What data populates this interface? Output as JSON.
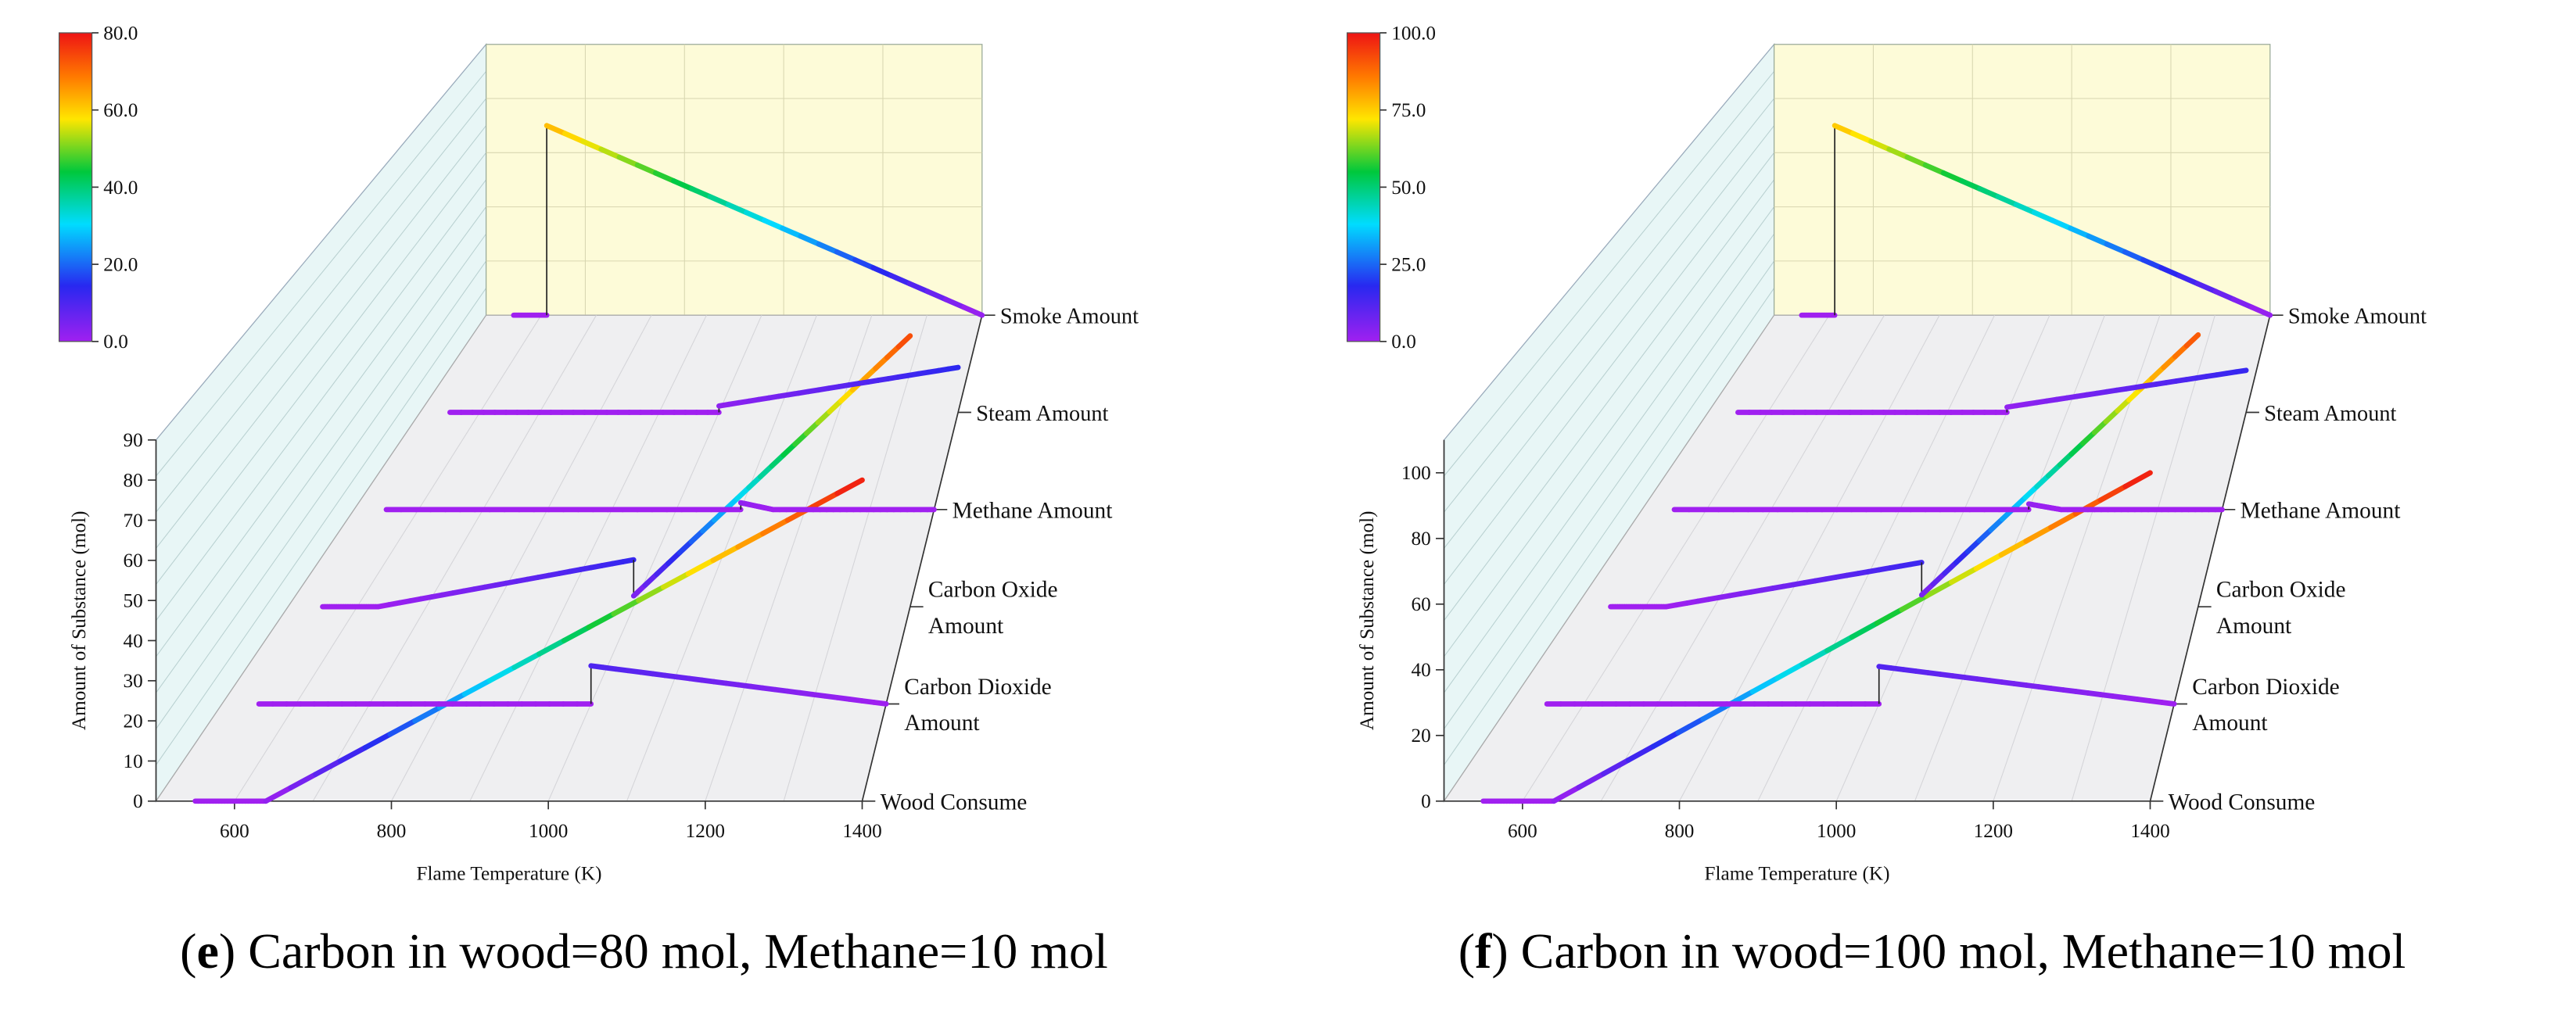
{
  "chart_data": [
    {
      "type": "3d-line",
      "panel_letter": "e",
      "caption": ") Carbon in wood=80 mol, Methane=10 mol",
      "xlabel": "Flame Temperature (K)",
      "ylabel": "Amount of Substance (mol)",
      "xlim": [
        500,
        1400
      ],
      "xticks": [
        "600",
        "800",
        "1000",
        "1200",
        "1400"
      ],
      "zlim": [
        0,
        90
      ],
      "zticks": [
        "0",
        "10",
        "20",
        "30",
        "40",
        "50",
        "60",
        "70",
        "80",
        "90"
      ],
      "colorbar": {
        "min": 0,
        "max": 80,
        "ticks": [
          "0.0",
          "20.0",
          "40.0",
          "60.0",
          "80.0"
        ]
      },
      "series": [
        {
          "name": "Wood Consume",
          "label_lines": [
            "Wood Consume"
          ],
          "points": [
            [
              550,
              0
            ],
            [
              640,
              0
            ],
            [
              1400,
              80
            ]
          ]
        },
        {
          "name": "Carbon Dioxide Amount",
          "label_lines": [
            "Carbon Dioxide",
            "Amount"
          ],
          "points": [
            [
              550,
              0
            ],
            [
              1000,
              0
            ],
            [
              1000,
              10
            ],
            [
              1400,
              0
            ]
          ]
        },
        {
          "name": "Carbon Oxide Amount",
          "label_lines": [
            "Carbon Oxide",
            "Amount"
          ],
          "points": [
            [
              550,
              0
            ],
            [
              630,
              0
            ],
            [
              1000,
              13
            ],
            [
              1000,
              3
            ],
            [
              1400,
              75
            ]
          ]
        },
        {
          "name": "Methane Amount",
          "label_lines": [
            "Methane Amount"
          ],
          "points": [
            [
              550,
              0
            ],
            [
              1100,
              0
            ],
            [
              1100,
              2
            ],
            [
              1150,
              0
            ],
            [
              1400,
              0
            ]
          ]
        },
        {
          "name": "Steam Amount",
          "label_lines": [
            "Steam Amount"
          ],
          "points": [
            [
              550,
              0
            ],
            [
              1000,
              0
            ],
            [
              1000,
              2
            ],
            [
              1400,
              14
            ]
          ]
        },
        {
          "name": "Smoke Amount",
          "label_lines": [
            "Smoke Amount"
          ],
          "points": [
            [
              550,
              0
            ],
            [
              610,
              0
            ],
            [
              610,
              63
            ],
            [
              1400,
              0
            ]
          ]
        }
      ]
    },
    {
      "type": "3d-line",
      "panel_letter": "f",
      "caption": ") Carbon in wood=100 mol, Methane=10 mol",
      "xlabel": "Flame Temperature (K)",
      "ylabel": "Amount of Substance (mol)",
      "xlim": [
        500,
        1400
      ],
      "xticks": [
        "600",
        "800",
        "1000",
        "1200",
        "1400"
      ],
      "zlim": [
        0,
        110
      ],
      "zticks": [
        "0",
        "20",
        "40",
        "60",
        "80",
        "100"
      ],
      "colorbar": {
        "min": 0,
        "max": 100,
        "ticks": [
          "0.0",
          "25.0",
          "50.0",
          "75.0",
          "100.0"
        ]
      },
      "series": [
        {
          "name": "Wood Consume",
          "label_lines": [
            "Wood Consume"
          ],
          "points": [
            [
              550,
              0
            ],
            [
              640,
              0
            ],
            [
              1400,
              100
            ]
          ]
        },
        {
          "name": "Carbon Dioxide Amount",
          "label_lines": [
            "Carbon Dioxide",
            "Amount"
          ],
          "points": [
            [
              550,
              0
            ],
            [
              1000,
              0
            ],
            [
              1000,
              12
            ],
            [
              1400,
              0
            ]
          ]
        },
        {
          "name": "Carbon Oxide Amount",
          "label_lines": [
            "Carbon Oxide",
            "Amount"
          ],
          "points": [
            [
              550,
              0
            ],
            [
              630,
              0
            ],
            [
              1000,
              15
            ],
            [
              1000,
              4
            ],
            [
              1400,
              92
            ]
          ]
        },
        {
          "name": "Methane Amount",
          "label_lines": [
            "Methane Amount"
          ],
          "points": [
            [
              550,
              0
            ],
            [
              1100,
              0
            ],
            [
              1100,
              2
            ],
            [
              1150,
              0
            ],
            [
              1400,
              0
            ]
          ]
        },
        {
          "name": "Steam Amount",
          "label_lines": [
            "Steam Amount"
          ],
          "points": [
            [
              550,
              0
            ],
            [
              1000,
              0
            ],
            [
              1000,
              2
            ],
            [
              1400,
              16
            ]
          ]
        },
        {
          "name": "Smoke Amount",
          "label_lines": [
            "Smoke Amount"
          ],
          "points": [
            [
              550,
              0
            ],
            [
              610,
              0
            ],
            [
              610,
              77
            ],
            [
              1400,
              0
            ]
          ]
        }
      ]
    }
  ]
}
